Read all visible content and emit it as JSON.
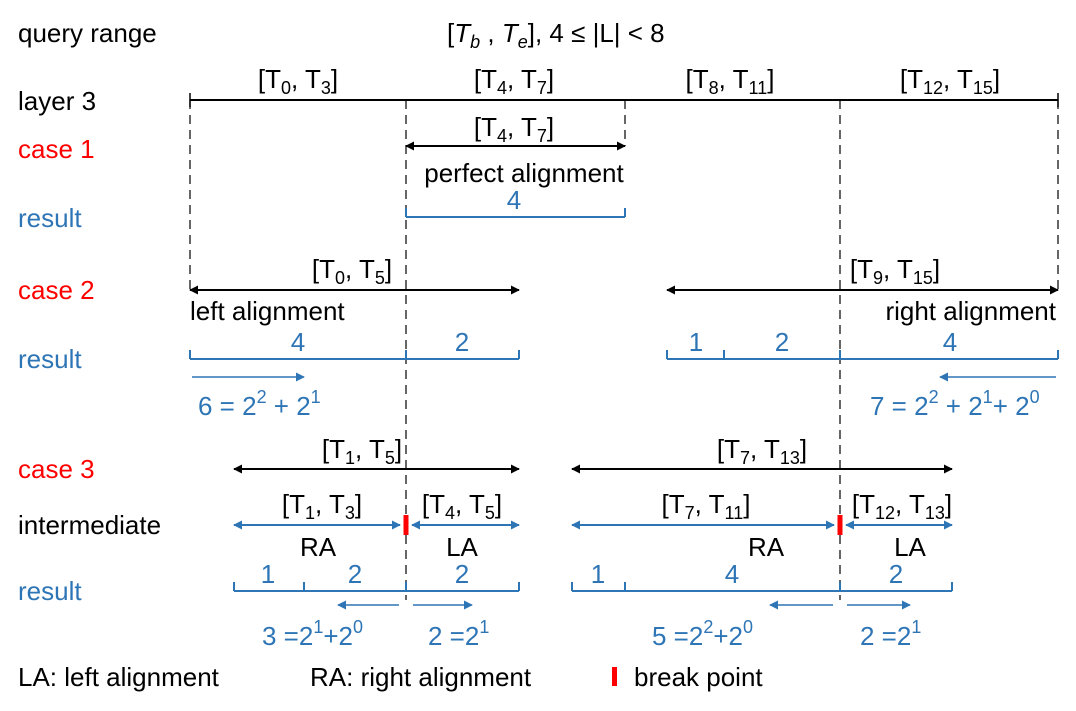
{
  "colors": {
    "black": "#000000",
    "blue": "#2e75b6",
    "red": "#ff0000"
  },
  "header": {
    "query_label": "query range",
    "query_formula": {
      "lb": "[",
      "T": "T",
      "b": "b",
      "comma": " ,  ",
      "e": "e",
      "rest": "],   4 ≤ |L| < 8"
    }
  },
  "layer3": {
    "label": "layer 3",
    "intervals": [
      {
        "a": "0",
        "b": "3"
      },
      {
        "a": "4",
        "b": "7"
      },
      {
        "a": "8",
        "b": "11"
      },
      {
        "a": "12",
        "b": "15"
      }
    ]
  },
  "rows": {
    "case1": "case 1",
    "result1": "result",
    "case2": "case 2",
    "result2": "result",
    "case3": "case 3",
    "intermediate": "intermediate",
    "result3": "result"
  },
  "case1": {
    "interval": {
      "a": "4",
      "b": "7"
    },
    "caption": "perfect alignment",
    "result_value": "4"
  },
  "case2": {
    "left_interval": {
      "a": "0",
      "b": "5"
    },
    "left_caption": "left alignment",
    "right_interval": {
      "a": "9",
      "b": "15"
    },
    "right_caption": "right alignment",
    "left_results": [
      "4",
      "2"
    ],
    "right_results": [
      "1",
      "2",
      "4"
    ],
    "left_formula": {
      "lead": "6 = 2",
      "e1": "2",
      "mid": " + 2",
      "e2": "1"
    },
    "right_formula": {
      "lead": "7 = 2",
      "e1": "2",
      "mid1": " + 2",
      "e2": "1",
      "mid2": "+ 2",
      "e3": "0"
    }
  },
  "case3": {
    "left_interval": {
      "a": "1",
      "b": "5"
    },
    "right_interval": {
      "a": "7",
      "b": "13"
    },
    "intermediate": [
      {
        "a": "1",
        "b": "3",
        "tag": "RA"
      },
      {
        "a": "4",
        "b": "5",
        "tag": "LA"
      },
      {
        "a": "7",
        "b": "11",
        "tag": "RA"
      },
      {
        "a": "12",
        "b": "13",
        "tag": "LA"
      }
    ],
    "left_results": [
      "1",
      "2",
      "2"
    ],
    "right_results": [
      "1",
      "4",
      "2"
    ],
    "formulas": [
      {
        "lead": "3 =2",
        "e1": "1",
        "mid": "+2",
        "e2": "0"
      },
      {
        "lead": "2 =2",
        "e1": "1"
      },
      {
        "lead": "5 =2",
        "e1": "2",
        "mid": "+2",
        "e2": "0"
      },
      {
        "lead": "2 =2",
        "e1": "1"
      }
    ]
  },
  "legend": {
    "la": "LA: left alignment",
    "ra": "RA: right alignment",
    "bp": "break point"
  }
}
